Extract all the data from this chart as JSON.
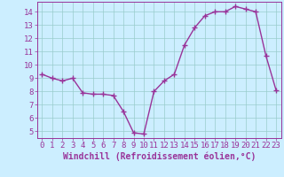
{
  "x": [
    0,
    1,
    2,
    3,
    4,
    5,
    6,
    7,
    8,
    9,
    10,
    11,
    12,
    13,
    14,
    15,
    16,
    17,
    18,
    19,
    20,
    21,
    22,
    23
  ],
  "y": [
    9.3,
    9.0,
    8.8,
    9.0,
    7.9,
    7.8,
    7.8,
    7.7,
    6.5,
    4.9,
    4.8,
    8.0,
    8.8,
    9.3,
    11.5,
    12.8,
    13.7,
    14.0,
    14.0,
    14.4,
    14.2,
    14.0,
    10.7,
    8.1
  ],
  "line_color": "#993399",
  "marker": "+",
  "marker_size": 4,
  "linewidth": 1.0,
  "xlabel": "Windchill (Refroidissement éolien,°C)",
  "xlabel_fontsize": 7,
  "xlim": [
    -0.5,
    23.5
  ],
  "ylim": [
    4.5,
    14.75
  ],
  "yticks": [
    5,
    6,
    7,
    8,
    9,
    10,
    11,
    12,
    13,
    14
  ],
  "xticks": [
    0,
    1,
    2,
    3,
    4,
    5,
    6,
    7,
    8,
    9,
    10,
    11,
    12,
    13,
    14,
    15,
    16,
    17,
    18,
    19,
    20,
    21,
    22,
    23
  ],
  "bg_color": "#cceeff",
  "grid_color": "#99cccc",
  "tick_fontsize": 6.5,
  "tick_color": "#993399",
  "xlabel_bold": true
}
